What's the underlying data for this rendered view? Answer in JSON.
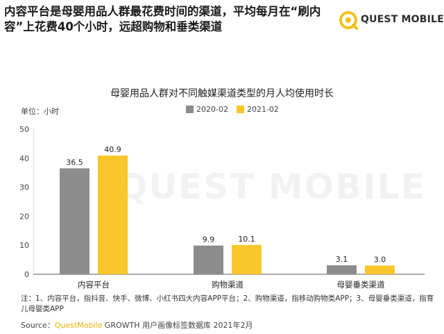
{
  "headline": "内容平台是母婴用品人群最花费时间的渠道，平均每月在“刷内容”上花费40个小时，远超购物和垂类渠道",
  "logo": {
    "text": "QUEST MOBILE",
    "icon": "quest-mobile-logo-icon",
    "color": "#f3c21b"
  },
  "watermark": "QUEST MOBILE",
  "chart_data": {
    "type": "bar",
    "title": "母婴用品人群对不同触媒渠道类型的月人均使用时长",
    "unit_label": "单位：小时",
    "categories": [
      "内容平台",
      "购物渠道",
      "母婴垂类渠道"
    ],
    "series": [
      {
        "name": "2020-02",
        "values": [
          36.5,
          9.9,
          3.1
        ],
        "color": "#8c8c8c"
      },
      {
        "name": "2021-02",
        "values": [
          40.9,
          10.1,
          3.0
        ],
        "color": "#f7c72c"
      }
    ],
    "ylim": [
      0,
      50
    ],
    "yticks": [
      0,
      10,
      20,
      30,
      40,
      50
    ],
    "data_labels": [
      [
        "36.5",
        "9.9",
        "3.1"
      ],
      [
        "40.9",
        "10.1",
        "3.0"
      ]
    ],
    "legend_position": "top-center",
    "grid": false
  },
  "note": "注：1、内容平台，指抖音、快手、微博、小红书四大内容APP平台；2、购物渠道，指移动购物类APP；3、母婴垂类渠道，指育儿母婴类APP",
  "source": {
    "label": "Source：",
    "brand": "QuestMobile",
    "rest": " GROWTH 用户画像标签数据库 2021年2月"
  }
}
